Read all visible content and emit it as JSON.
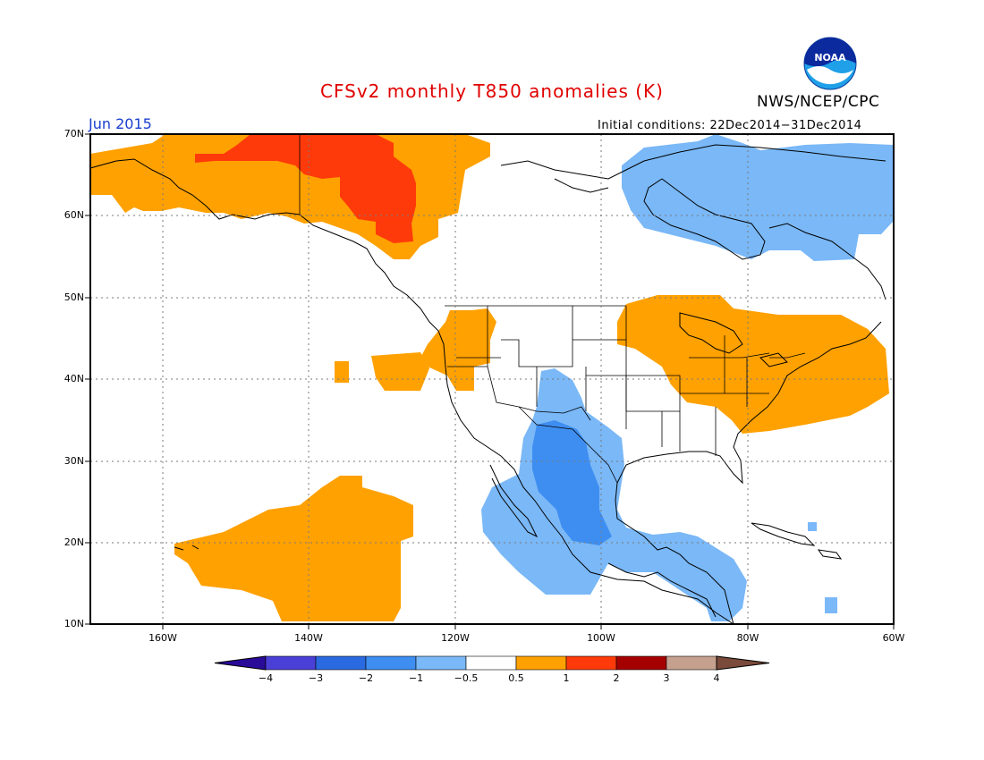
{
  "title": "CFSv2 monthly T850 anomalies (K)",
  "agency": "NWS/NCEP/CPC",
  "logo_text": "NOAA",
  "month_label": "Jun 2015",
  "initial_conditions": "Initial conditions: 22Dec2014−31Dec2014",
  "lat_labels": [
    "70N",
    "60N",
    "50N",
    "40N",
    "30N",
    "20N",
    "10N"
  ],
  "lon_labels": [
    "160W",
    "140W",
    "120W",
    "100W",
    "80W",
    "60W"
  ],
  "colorbar": {
    "labels": [
      "−4",
      "−3",
      "−2",
      "−1",
      "−0.5",
      "0.5",
      "1",
      "2",
      "3",
      "4"
    ],
    "colors": [
      "#2a0a99",
      "#4a3fd6",
      "#2a6ae0",
      "#3e8ef2",
      "#7ab8f7",
      "#ffffff",
      "#ffa100",
      "#ff3a0a",
      "#a50000",
      "#c6a08e",
      "#7a4a3a"
    ]
  },
  "anomaly_colors": {
    "orange": "#ffa100",
    "red": "#ff3a0a",
    "light_blue": "#7ab8f7",
    "mid_blue": "#3e8ef2"
  }
}
